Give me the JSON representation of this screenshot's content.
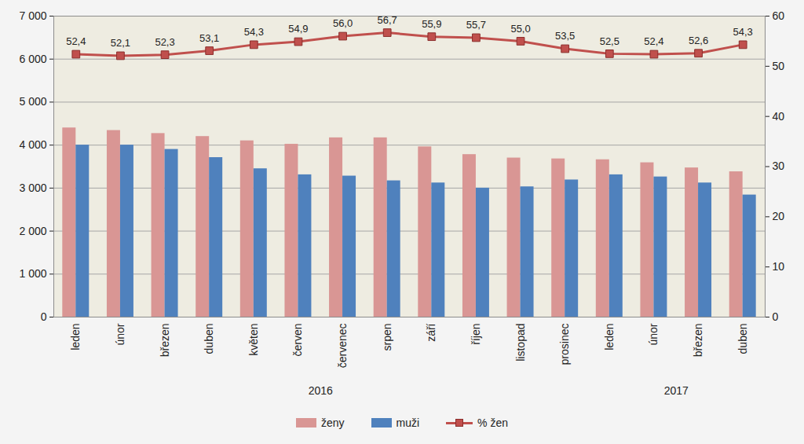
{
  "chart_data": {
    "type": "bar",
    "categories": [
      "leden",
      "únor",
      "březen",
      "duben",
      "květen",
      "červen",
      "červenec",
      "srpen",
      "září",
      "říjen",
      "listopad",
      "prosinec",
      "leden",
      "únor",
      "březen",
      "duben"
    ],
    "category_groups": [
      {
        "label": "2016",
        "count": 12
      },
      {
        "label": "2017",
        "count": 4
      }
    ],
    "series": [
      {
        "name": "ženy",
        "type": "bar",
        "color": "#d99694",
        "values": [
          4400,
          4340,
          4270,
          4200,
          4100,
          4020,
          4170,
          4170,
          3960,
          3780,
          3700,
          3680,
          3660,
          3590,
          3470,
          3380
        ]
      },
      {
        "name": "muži",
        "type": "bar",
        "color": "#4f81bd",
        "values": [
          4000,
          4000,
          3900,
          3710,
          3450,
          3310,
          3280,
          3170,
          3120,
          3000,
          3030,
          3190,
          3310,
          3260,
          3120,
          2840
        ]
      },
      {
        "name": "% žen",
        "type": "line",
        "axis": "y2",
        "color": "#c0504d",
        "marker": "square",
        "data_labels": true,
        "values": [
          52.4,
          52.1,
          52.3,
          53.1,
          54.3,
          54.9,
          56.0,
          56.7,
          55.9,
          55.7,
          55.0,
          53.5,
          52.5,
          52.4,
          52.6,
          54.3
        ],
        "value_labels": [
          "52,4",
          "52,1",
          "52,3",
          "53,1",
          "54,3",
          "54,9",
          "56,0",
          "56,7",
          "55,9",
          "55,7",
          "55,0",
          "53,5",
          "52,5",
          "52,4",
          "52,6",
          "54,3"
        ]
      }
    ],
    "ylim": [
      0,
      7000
    ],
    "yticks": [
      0,
      {
        "value": 1000,
        "label": "1 000"
      },
      {
        "value": 2000,
        "label": "2 000"
      },
      {
        "value": 3000,
        "label": "3 000"
      },
      {
        "value": 4000,
        "label": "4 000"
      },
      {
        "value": 5000,
        "label": "5 000"
      },
      {
        "value": 6000,
        "label": "6 000"
      },
      {
        "value": 7000,
        "label": "7 000"
      }
    ],
    "y2lim": [
      0,
      60
    ],
    "y2ticks": [
      0,
      10,
      20,
      30,
      40,
      50,
      60
    ],
    "grid": true,
    "legend": "bottom"
  }
}
